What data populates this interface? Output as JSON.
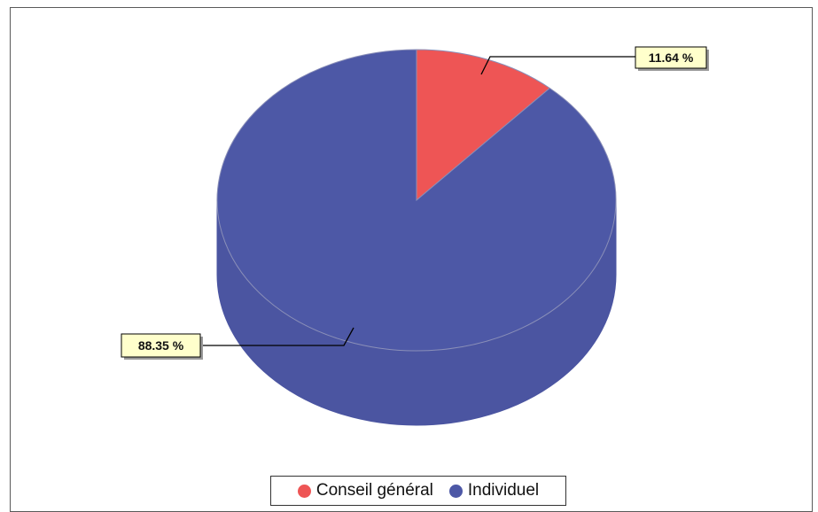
{
  "chart_data": {
    "type": "pie",
    "style": "3d",
    "title": "",
    "slices": [
      {
        "label": "Conseil général",
        "value": 11.64,
        "display": "11.64 %",
        "color": "#ee5555"
      },
      {
        "label": "Individuel",
        "value": 88.35,
        "display": "88.35 %",
        "color": "#4d58a6"
      }
    ],
    "legend": {
      "position": "bottom-center"
    },
    "label_style": {
      "background": "#ffffcc",
      "border": "#000000"
    }
  }
}
